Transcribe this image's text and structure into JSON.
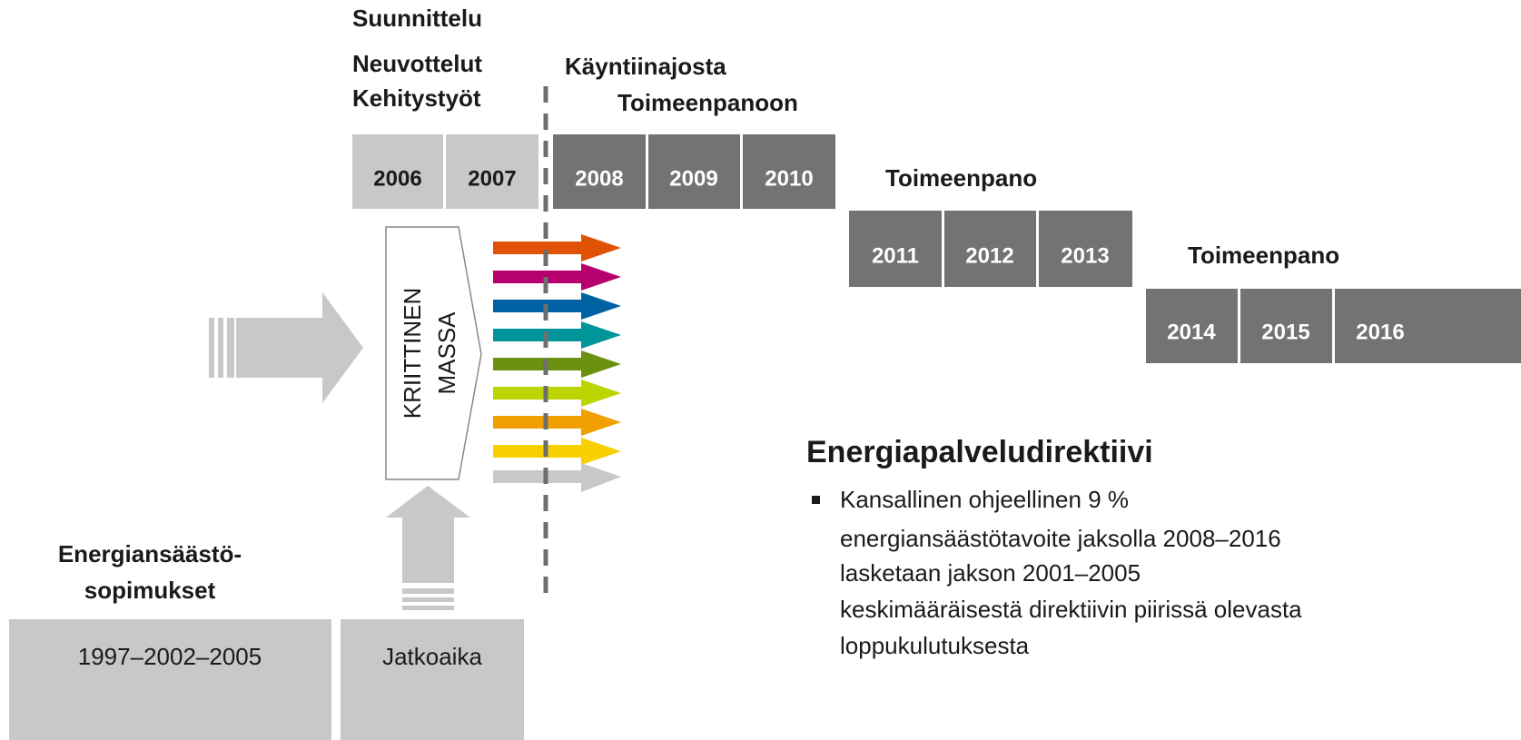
{
  "phase1": {
    "labels": [
      "Suunnittelu",
      "Neuvottelut",
      "Kehitystyöt"
    ],
    "years": [
      "2006",
      "2007"
    ]
  },
  "phase2": {
    "labels": [
      "Käyntiinajosta",
      "Toimeenpanoon"
    ],
    "years": [
      "2008",
      "2009",
      "2010"
    ]
  },
  "phase3": {
    "label": "Toimeenpano",
    "years": [
      "2011",
      "2012",
      "2013"
    ]
  },
  "phase4": {
    "label": "Toimeenpano",
    "years": [
      "2014",
      "2015",
      "2016"
    ]
  },
  "critical_mass": [
    "KRIITTINEN",
    "MASSA"
  ],
  "agreements": {
    "title": [
      "Energiansäästö-",
      "sopimukset"
    ],
    "boxes": [
      "1997–2002–2005",
      "Jatkoaika"
    ]
  },
  "directive": {
    "title": "Energiapalveludirektiivi",
    "bullet_lines": [
      "Kansallinen ohjeellinen 9 %",
      "energiansäästötavoite jaksolla 2008–2016",
      "lasketaan jakson 2001–2005",
      "keskimääräisestä direktiivin piirissä olevasta",
      "loppukulutuksesta"
    ]
  }
}
